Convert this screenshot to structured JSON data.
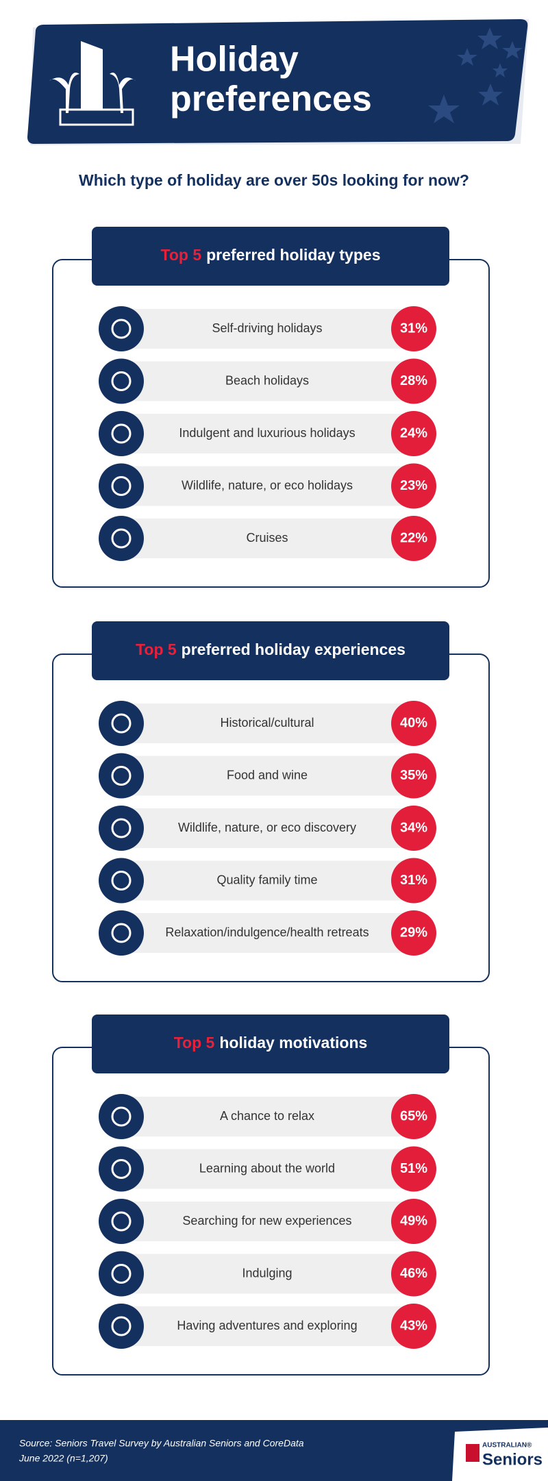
{
  "header": {
    "title_line1": "Holiday",
    "title_line2": "preferences"
  },
  "subtitle": "Which type of holiday are over 50s looking for now?",
  "sections": [
    {
      "highlight": "Top 5",
      "heading": "preferred holiday types",
      "items": [
        {
          "label": "Self-driving holidays",
          "value": "31%"
        },
        {
          "label": "Beach holidays",
          "value": "28%"
        },
        {
          "label": "Indulgent and luxurious holidays",
          "value": "24%"
        },
        {
          "label": "Wildlife, nature, or eco holidays",
          "value": "23%"
        },
        {
          "label": "Cruises",
          "value": "22%"
        }
      ]
    },
    {
      "highlight": "Top 5",
      "heading": "preferred holiday experiences",
      "items": [
        {
          "label": "Historical/cultural",
          "value": "40%"
        },
        {
          "label": "Food and wine",
          "value": "35%"
        },
        {
          "label": "Wildlife, nature, or eco discovery",
          "value": "34%"
        },
        {
          "label": "Quality family time",
          "value": "31%"
        },
        {
          "label": "Relaxation/indulgence/health retreats",
          "value": "29%"
        }
      ]
    },
    {
      "highlight": "Top 5",
      "heading": "holiday motivations",
      "items": [
        {
          "label": "A chance to relax",
          "value": "65%"
        },
        {
          "label": "Learning about the world",
          "value": "51%"
        },
        {
          "label": "Searching for new experiences",
          "value": "49%"
        },
        {
          "label": "Indulging",
          "value": "46%"
        },
        {
          "label": "Having adventures and exploring",
          "value": "43%"
        }
      ]
    }
  ],
  "footer": {
    "source_line1": "Source: Seniors Travel Survey by Australian Seniors and CoreData",
    "source_line2": "June 2022 (n=1,207)",
    "logo_small": "AUSTRALIAN®",
    "logo_big": "Seniors"
  }
}
